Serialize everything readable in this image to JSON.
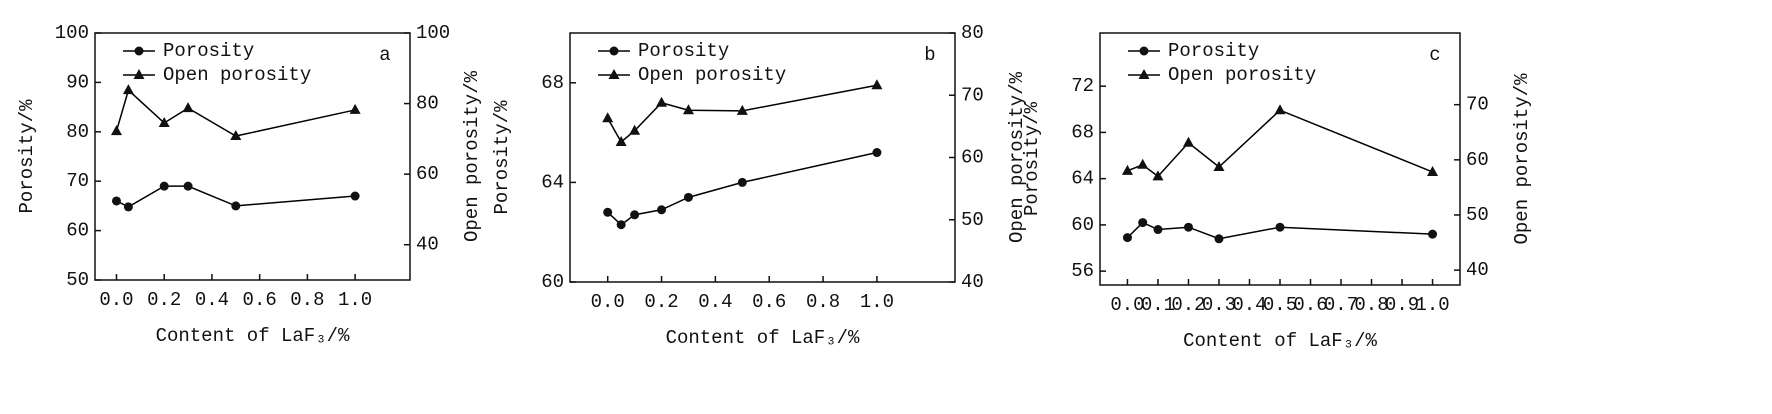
{
  "chart_data": [
    {
      "type": "line",
      "annotation": "a",
      "x_label": "Content of LaF₃/%",
      "y_label": "Porosity/%",
      "y2_label": "Open porosity/%",
      "xlim": [
        -0.09,
        1.23
      ],
      "xticks": [
        {
          "value": 0,
          "label": "0.0"
        },
        {
          "value": 0.2,
          "label": "0.2"
        },
        {
          "value": 0.4,
          "label": "0.4"
        },
        {
          "value": 0.6,
          "label": "0.6"
        },
        {
          "value": 0.8,
          "label": "0.8"
        },
        {
          "value": 1,
          "label": "1.0"
        }
      ],
      "ylim": [
        50,
        100
      ],
      "yticks": [
        50,
        60,
        70,
        80,
        90,
        100
      ],
      "y2lim": [
        30,
        100
      ],
      "y2ticks": [
        40,
        60,
        80,
        100
      ],
      "x": [
        0,
        0.05,
        0.2,
        0.3,
        0.5,
        1.0
      ],
      "series": [
        {
          "name": "Porosity",
          "color": "#000000",
          "marker": "circle",
          "values": [
            66,
            64.8,
            69,
            69,
            65,
            67
          ]
        },
        {
          "name": "Open porosity",
          "color": "#000000",
          "marker": "triangle",
          "axis": "y2",
          "values": [
            72.2,
            83.8,
            74.5,
            78.7,
            70.8,
            78.2
          ]
        }
      ]
    },
    {
      "type": "line",
      "annotation": "b",
      "x_label": "Content of LaF₃/%",
      "y_label": "Porosity/%",
      "y2_label": "Open porosity/%",
      "xlim": [
        -0.14,
        1.29
      ],
      "xticks": [
        {
          "value": 0,
          "label": "0.0"
        },
        {
          "value": 0.2,
          "label": "0.2"
        },
        {
          "value": 0.4,
          "label": "0.4"
        },
        {
          "value": 0.6,
          "label": "0.6"
        },
        {
          "value": 0.8,
          "label": "0.8"
        },
        {
          "value": 1,
          "label": "1.0"
        }
      ],
      "ylim": [
        60,
        70
      ],
      "yticks": [
        60,
        64,
        68
      ],
      "y2lim": [
        40,
        80
      ],
      "y2ticks": [
        40,
        50,
        60,
        70,
        80
      ],
      "x": [
        0,
        0.05,
        0.1,
        0.2,
        0.3,
        0.5,
        1.0
      ],
      "series": [
        {
          "name": "Porosity",
          "color": "#000000",
          "marker": "circle",
          "values": [
            62.8,
            62.3,
            62.7,
            62.9,
            63.4,
            64.0,
            65.2
          ]
        },
        {
          "name": "Open porosity",
          "color": "#000000",
          "marker": "triangle",
          "axis": "y2",
          "values": [
            66.3,
            62.5,
            64.3,
            68.8,
            67.6,
            67.5,
            71.6
          ]
        }
      ]
    },
    {
      "type": "line",
      "annotation": "c",
      "x_label": "Content of LaF₃/%",
      "y_label": "Porosity/%",
      "y2_label": "Open porosity/%",
      "xlim": [
        -0.09,
        1.09
      ],
      "xticks": [
        {
          "value": 0,
          "label": "0.0"
        },
        {
          "value": 0.1,
          "label": "0.1"
        },
        {
          "value": 0.2,
          "label": "0.2"
        },
        {
          "value": 0.3,
          "label": "0.3"
        },
        {
          "value": 0.4,
          "label": "0.4"
        },
        {
          "value": 0.5,
          "label": "0.5"
        },
        {
          "value": 0.6,
          "label": "0.6"
        },
        {
          "value": 0.7,
          "label": "0.7"
        },
        {
          "value": 0.8,
          "label": "0.8"
        },
        {
          "value": 0.9,
          "label": "0.9"
        },
        {
          "value": 1,
          "label": "1.0"
        }
      ],
      "ylim": [
        54.8,
        76.6
      ],
      "yticks": [
        56,
        60,
        64,
        68,
        72
      ],
      "y2lim": [
        37.3,
        83
      ],
      "y2ticks": [
        40,
        50,
        60,
        70
      ],
      "x": [
        0,
        0.05,
        0.1,
        0.2,
        0.3,
        0.5,
        1.0
      ],
      "series": [
        {
          "name": "Porosity",
          "color": "#000000",
          "marker": "circle",
          "values": [
            58.9,
            60.2,
            59.6,
            59.8,
            58.8,
            59.8,
            59.2
          ]
        },
        {
          "name": "Open porosity",
          "color": "#000000",
          "marker": "triangle",
          "axis": "y2",
          "values": [
            58.0,
            59.1,
            57.0,
            63.1,
            58.7,
            69.0,
            57.8
          ]
        }
      ]
    }
  ]
}
